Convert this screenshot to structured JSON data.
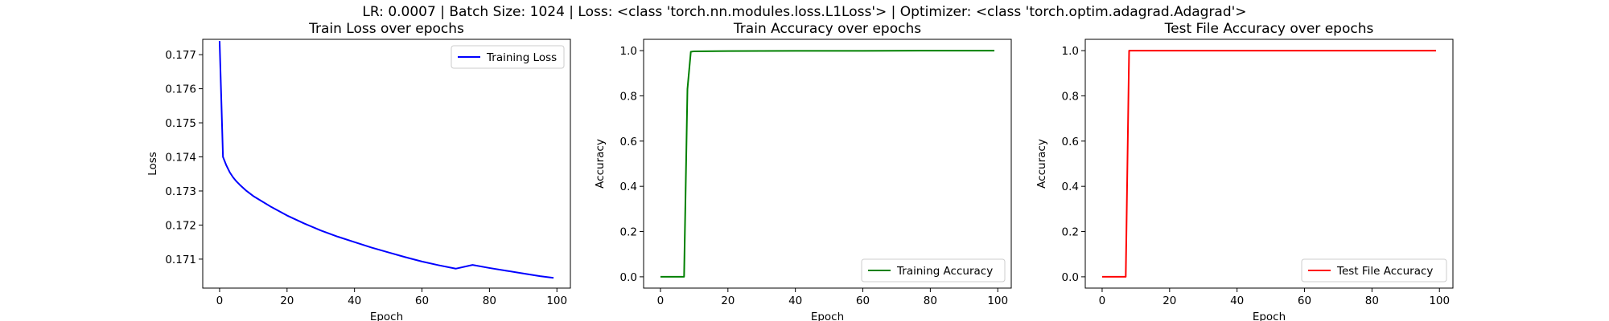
{
  "suptitle": "LR: 0.0007 | Batch Size: 1024 | Loss: <class 'torch.nn.modules.loss.L1Loss'> | Optimizer: <class 'torch.optim.adagrad.Adagrad'>",
  "chart_data": [
    {
      "type": "line",
      "title": "Train Loss over epochs",
      "xlabel": "Epoch",
      "ylabel": "Loss",
      "xlim": [
        -5,
        104
      ],
      "ylim": [
        0.17015,
        0.17745
      ],
      "xticks": [
        0,
        20,
        40,
        60,
        80,
        100
      ],
      "yticks": [
        0.171,
        0.172,
        0.173,
        0.174,
        0.175,
        0.176,
        0.177
      ],
      "ytick_labels": [
        "0.171",
        "0.172",
        "0.173",
        "0.174",
        "0.175",
        "0.176",
        "0.177"
      ],
      "grid": false,
      "legend_position": "upper right",
      "series": [
        {
          "name": "Training Loss",
          "color": "#0000ff",
          "x": [
            0,
            1,
            2,
            3,
            4,
            5,
            6,
            8,
            10,
            15,
            20,
            25,
            30,
            35,
            40,
            45,
            50,
            55,
            60,
            65,
            70,
            75,
            80,
            85,
            90,
            95,
            99
          ],
          "y": [
            0.1774,
            0.174,
            0.17375,
            0.17355,
            0.1734,
            0.17328,
            0.17318,
            0.173,
            0.17285,
            0.17255,
            0.17228,
            0.17205,
            0.17184,
            0.17166,
            0.1715,
            0.17134,
            0.1712,
            0.17106,
            0.17093,
            0.17082,
            0.17072,
            0.17083,
            0.17074,
            0.17066,
            0.17058,
            0.1705,
            0.17045
          ]
        }
      ]
    },
    {
      "type": "line",
      "title": "Train Accuracy over epochs",
      "xlabel": "Epoch",
      "ylabel": "Accuracy",
      "xlim": [
        -5,
        104
      ],
      "ylim": [
        -0.05,
        1.05
      ],
      "xticks": [
        0,
        20,
        40,
        60,
        80,
        100
      ],
      "yticks": [
        0.0,
        0.2,
        0.4,
        0.6,
        0.8,
        1.0
      ],
      "ytick_labels": [
        "0.0",
        "0.2",
        "0.4",
        "0.6",
        "0.8",
        "1.0"
      ],
      "grid": false,
      "legend_position": "lower right",
      "series": [
        {
          "name": "Training Accuracy",
          "color": "#008000",
          "x": [
            0,
            1,
            2,
            3,
            4,
            5,
            6,
            7,
            8,
            9,
            10,
            20,
            40,
            60,
            80,
            99
          ],
          "y": [
            0,
            0,
            0,
            0,
            0,
            0,
            0,
            0,
            0.83,
            0.995,
            0.997,
            0.998,
            0.999,
            0.999,
            1.0,
            1.0
          ]
        }
      ]
    },
    {
      "type": "line",
      "title": "Test File Accuracy over epochs",
      "xlabel": "Epoch",
      "ylabel": "Accuracy",
      "xlim": [
        -5,
        104
      ],
      "ylim": [
        -0.05,
        1.05
      ],
      "xticks": [
        0,
        20,
        40,
        60,
        80,
        100
      ],
      "yticks": [
        0.0,
        0.2,
        0.4,
        0.6,
        0.8,
        1.0
      ],
      "ytick_labels": [
        "0.0",
        "0.2",
        "0.4",
        "0.6",
        "0.8",
        "1.0"
      ],
      "grid": false,
      "legend_position": "lower right",
      "series": [
        {
          "name": "Test File Accuracy",
          "color": "#ff0000",
          "x": [
            0,
            1,
            2,
            3,
            4,
            5,
            6,
            7,
            8,
            9,
            20,
            40,
            60,
            80,
            99
          ],
          "y": [
            0,
            0,
            0,
            0,
            0,
            0,
            0,
            0,
            1.0,
            1.0,
            1.0,
            1.0,
            1.0,
            1.0,
            1.0
          ]
        }
      ]
    }
  ]
}
